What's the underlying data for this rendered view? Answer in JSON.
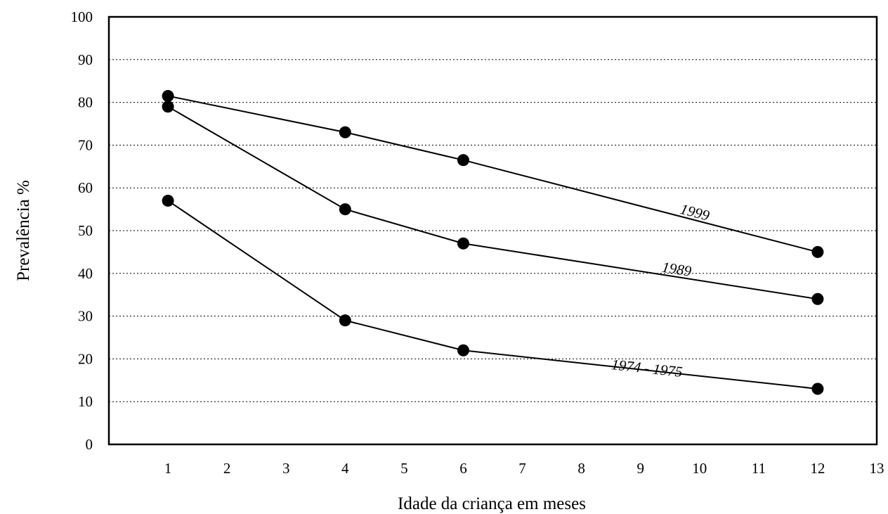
{
  "chart_data": {
    "type": "line",
    "xlabel": "Idade da criança em meses",
    "ylabel": "Prevalência %",
    "xlim": [
      0,
      13
    ],
    "ylim": [
      0,
      100
    ],
    "xticks": [
      1,
      2,
      3,
      4,
      5,
      6,
      7,
      8,
      9,
      10,
      11,
      12,
      13
    ],
    "yticks": [
      0,
      10,
      20,
      30,
      40,
      50,
      60,
      70,
      80,
      90,
      100
    ],
    "grid": "horizontal dotted",
    "legend": "none",
    "series": [
      {
        "name": "1999",
        "x": [
          1,
          4,
          6,
          12
        ],
        "values": [
          81.5,
          73,
          66.5,
          45
        ]
      },
      {
        "name": "1989",
        "x": [
          1,
          4,
          6,
          12
        ],
        "values": [
          79,
          55,
          47,
          34
        ]
      },
      {
        "name": "1974 - 1975",
        "x": [
          1,
          4,
          6,
          12
        ],
        "values": [
          57,
          29,
          22,
          13
        ]
      }
    ],
    "colors": {
      "line": "#000000",
      "marker": "#000000",
      "grid": "#000000"
    }
  }
}
